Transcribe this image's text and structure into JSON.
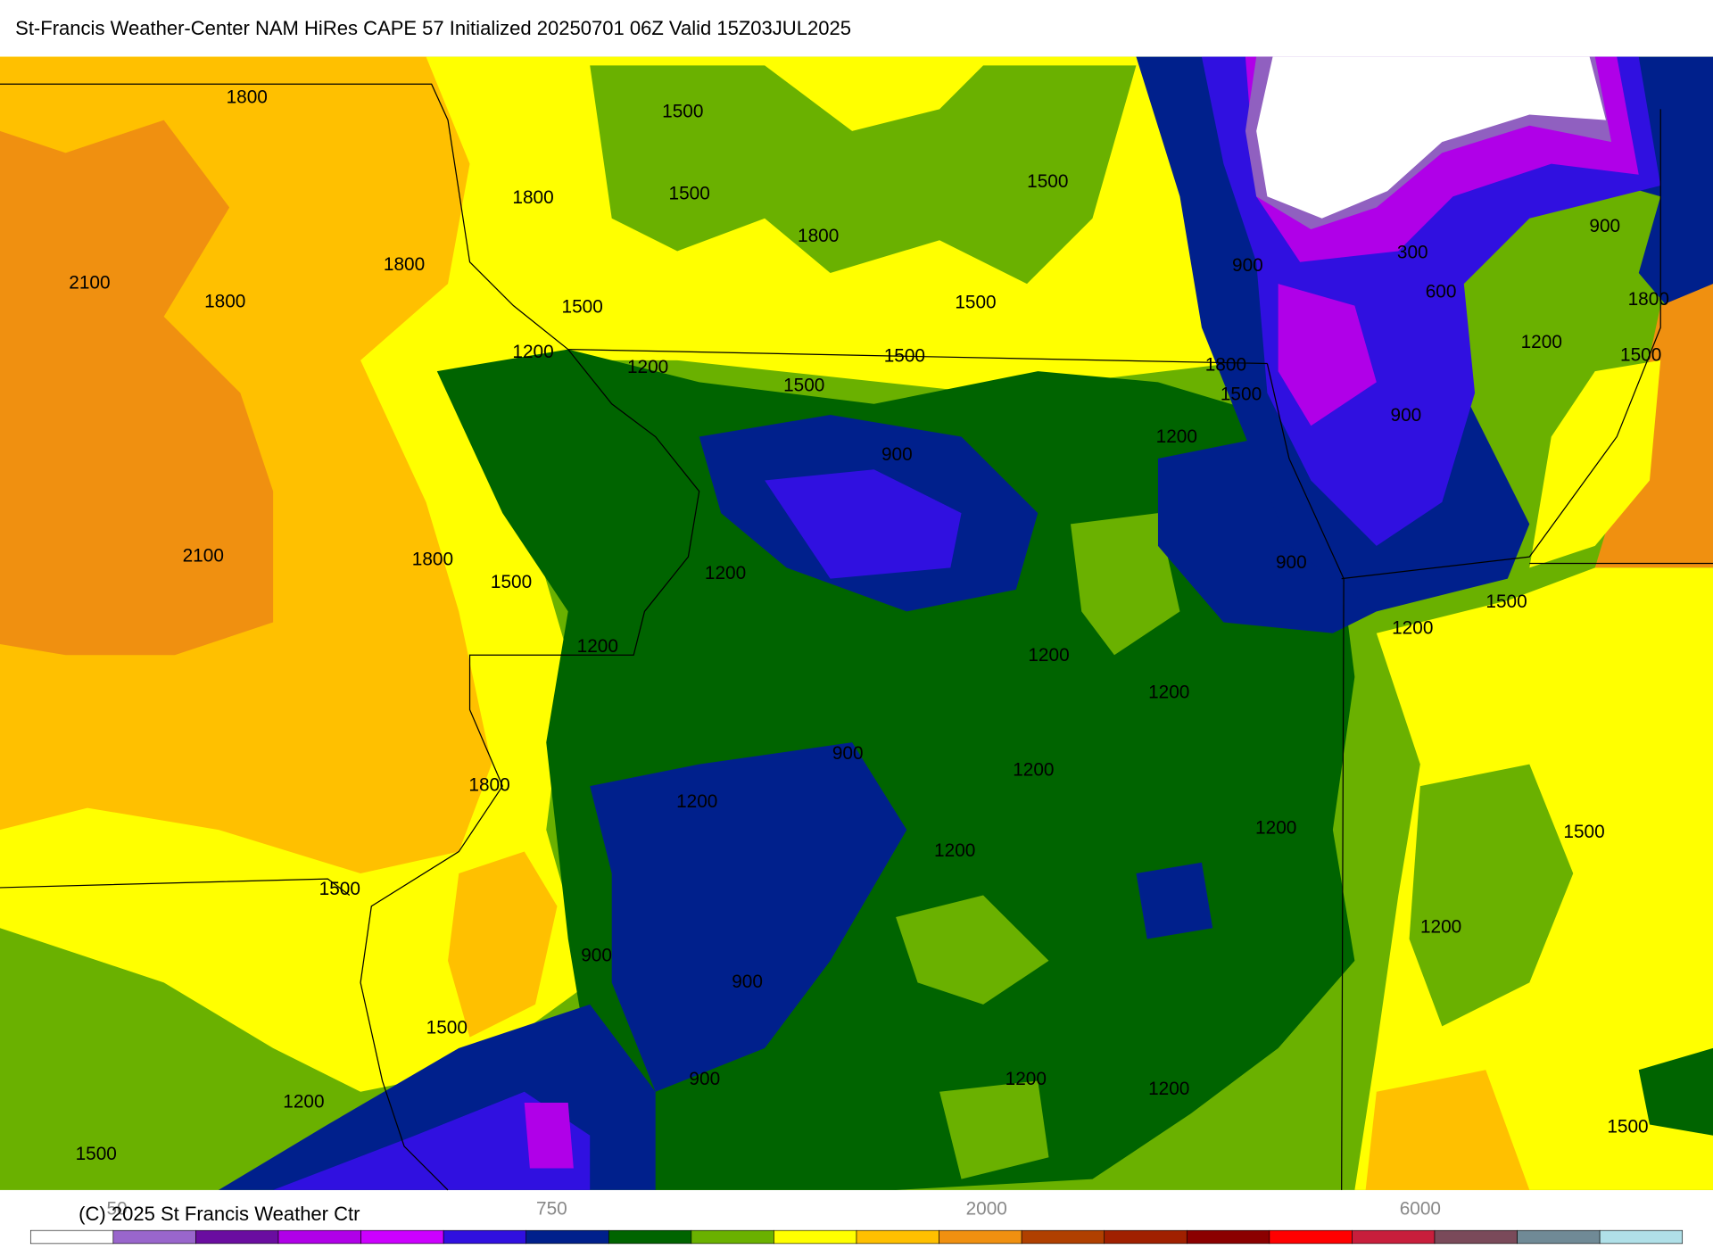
{
  "header": {
    "title": "St-Francis Weather-Center NAM HiRes CAPE  57 Initialized 20250701 06Z Valid 15Z03JUL2025"
  },
  "contour_labels": [
    "1800",
    "1500",
    "1500",
    "1800",
    "1800",
    "1500",
    "2100",
    "1800",
    "1800",
    "1500",
    "1500",
    "900",
    "300",
    "600",
    "900",
    "1800",
    "1200",
    "1500",
    "1200",
    "1200",
    "1500",
    "1500",
    "1800",
    "1500",
    "900",
    "1200",
    "900",
    "2100",
    "1800",
    "1500",
    "1200",
    "900",
    "1200",
    "1500",
    "1200",
    "1200",
    "1200",
    "900",
    "1200",
    "1800",
    "1200",
    "1200",
    "1500",
    "1200",
    "1500",
    "1200",
    "900",
    "900",
    "1500",
    "900",
    "1200",
    "1200",
    "1200",
    "1500",
    "1500"
  ],
  "colorbar": {
    "labels": [
      "50",
      "750",
      "2000",
      "6000"
    ]
  },
  "footer": {
    "copyright": "(C) 2025 St Francis Weather Ctr"
  }
}
